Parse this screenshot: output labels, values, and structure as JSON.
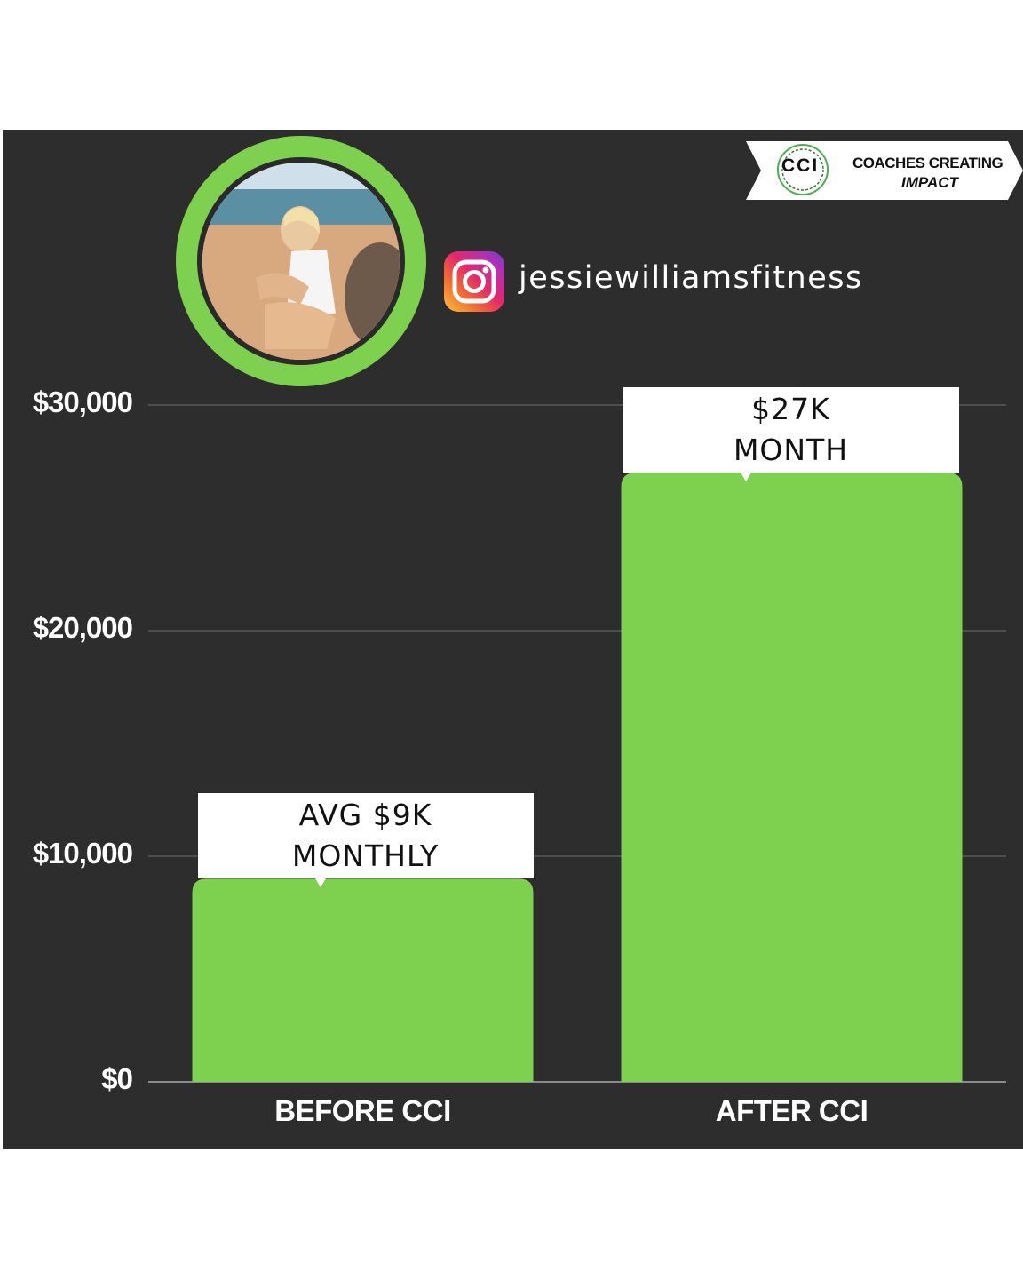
{
  "brand": {
    "mark": "CCI",
    "line1": "COACHES CREATING",
    "line2": "IMPACT"
  },
  "profile": {
    "avatar": "profile-photo",
    "handle_icon": "instagram-icon",
    "handle": "jessiewilliamsfitness"
  },
  "colors": {
    "panel": "#2d2d2d",
    "bar": "#7ed14f",
    "ring": "#7ed14f",
    "text": "#ffffff"
  },
  "chart_data": {
    "type": "bar",
    "categories": [
      "BEFORE CCI",
      "AFTER CCI"
    ],
    "values": [
      9000,
      27000
    ],
    "ylim": [
      0,
      30000
    ],
    "yticks": [
      {
        "value": 0,
        "label": "$0"
      },
      {
        "value": 10000,
        "label": "$10,000"
      },
      {
        "value": 20000,
        "label": "$20,000"
      },
      {
        "value": 30000,
        "label": "$30,000"
      }
    ],
    "data_labels": [
      {
        "line1": "AVG $9K",
        "line2": "MONTHLY"
      },
      {
        "line1": "$27K",
        "line2": "MONTH"
      }
    ],
    "grid": true,
    "legend": "none"
  }
}
